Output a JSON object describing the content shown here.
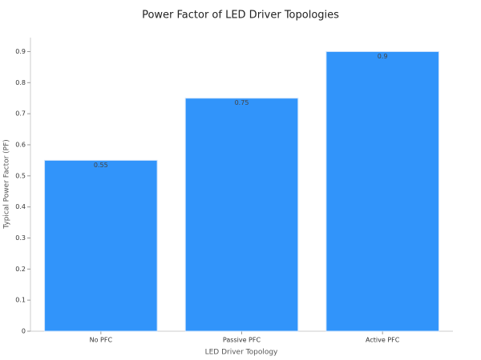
{
  "chart_data": {
    "type": "bar",
    "title": "Power Factor of LED Driver Topologies",
    "x_label": "LED Driver Topology",
    "y_label": "Typical Power Factor (PF)",
    "categories": [
      "No PFC",
      "Passive PFC",
      "Active PFC"
    ],
    "values": [
      0.55,
      0.75,
      0.9
    ],
    "color": "#3194fa",
    "ylim": [
      0,
      0.945
    ],
    "yticks": [
      0,
      0.1,
      0.2,
      0.3,
      0.4,
      0.5,
      0.6,
      0.7,
      0.8,
      0.9
    ],
    "grid": false
  }
}
